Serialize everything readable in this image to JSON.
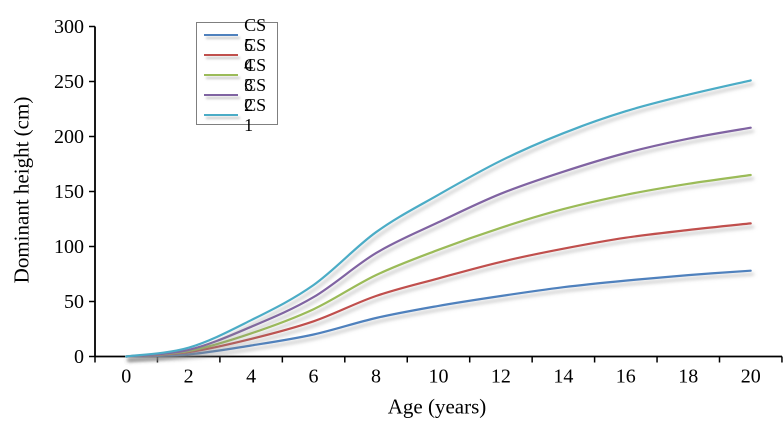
{
  "figure": {
    "background": "#ffffff",
    "axis_color": "#000000",
    "text_color": "#000000"
  },
  "chart_data": {
    "type": "line",
    "title": "",
    "xlabel": "Age (years)",
    "ylabel": "Dominant height (cm)",
    "xlim": [
      0,
      20
    ],
    "ylim": [
      0,
      300
    ],
    "x_ticks": [
      0,
      2,
      4,
      6,
      8,
      10,
      12,
      14,
      16,
      18,
      20
    ],
    "y_ticks": [
      0,
      50,
      100,
      150,
      200,
      250,
      300
    ],
    "grid": false,
    "smoothed": true,
    "legend_position": "inside-top-left",
    "categories": [
      0,
      2,
      4,
      6,
      8,
      10,
      12,
      14,
      16,
      18,
      20
    ],
    "series": [
      {
        "name": "CS 5",
        "color": "#4F81BD",
        "values": [
          0,
          2,
          10,
          20,
          35,
          46,
          55,
          63,
          69,
          74,
          78
        ]
      },
      {
        "name": "CS 4",
        "color": "#C0504D",
        "values": [
          0,
          4,
          16,
          32,
          55,
          71,
          86,
          98,
          108,
          115,
          121
        ]
      },
      {
        "name": "CS 3",
        "color": "#9BBB59",
        "values": [
          0,
          5,
          21,
          43,
          74,
          97,
          117,
          134,
          147,
          157,
          165
        ]
      },
      {
        "name": "CS 2",
        "color": "#8064A2",
        "values": [
          0,
          6,
          27,
          54,
          94,
          122,
          148,
          168,
          185,
          198,
          208
        ]
      },
      {
        "name": "CS 1",
        "color": "#4BACC6",
        "values": [
          0,
          8,
          33,
          65,
          113,
          147,
          178,
          203,
          223,
          238,
          251
        ]
      }
    ]
  }
}
